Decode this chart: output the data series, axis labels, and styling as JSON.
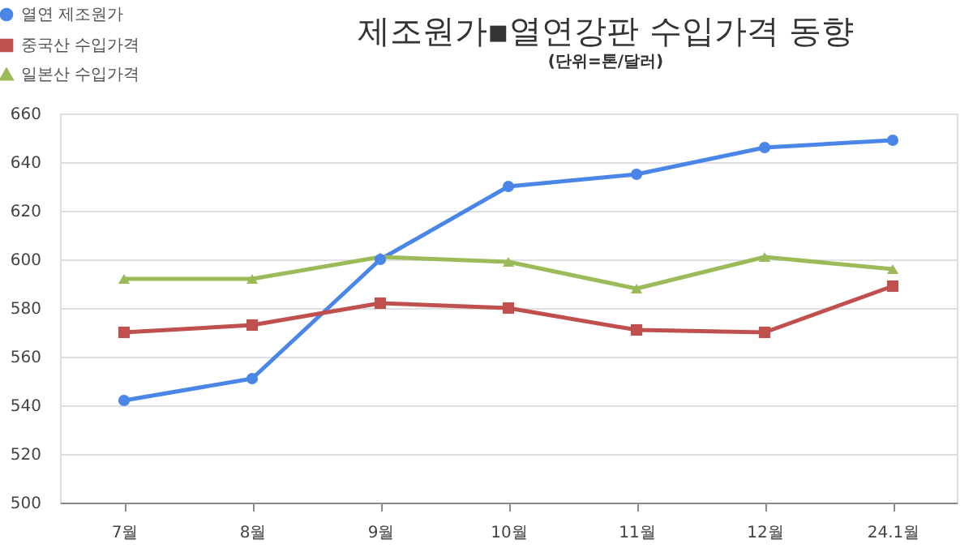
{
  "chart_data": {
    "type": "line",
    "title": "제조원가▪열연강판 수입가격 동향",
    "subtitle": "(단위=톤/달러)",
    "categories": [
      "7월",
      "8월",
      "9월",
      "10월",
      "11월",
      "12월",
      "24.1월"
    ],
    "series": [
      {
        "name": "열연 제조원가",
        "color": "#4a86e8",
        "marker": "circle",
        "values": [
          542,
          551,
          600,
          630,
          635,
          646,
          649
        ]
      },
      {
        "name": "중국산 수입가격",
        "color": "#c0504d",
        "marker": "square",
        "values": [
          570,
          573,
          582,
          580,
          571,
          570,
          589
        ]
      },
      {
        "name": "일본산 수입가격",
        "color": "#9bbb59",
        "marker": "triangle",
        "values": [
          592,
          592,
          601,
          599,
          588,
          601,
          596
        ]
      }
    ],
    "ylim": [
      500,
      660
    ],
    "yticks": [
      500,
      520,
      540,
      560,
      580,
      600,
      620,
      640,
      660
    ],
    "grid": "y",
    "legend": "top left",
    "line_style": "solid"
  }
}
